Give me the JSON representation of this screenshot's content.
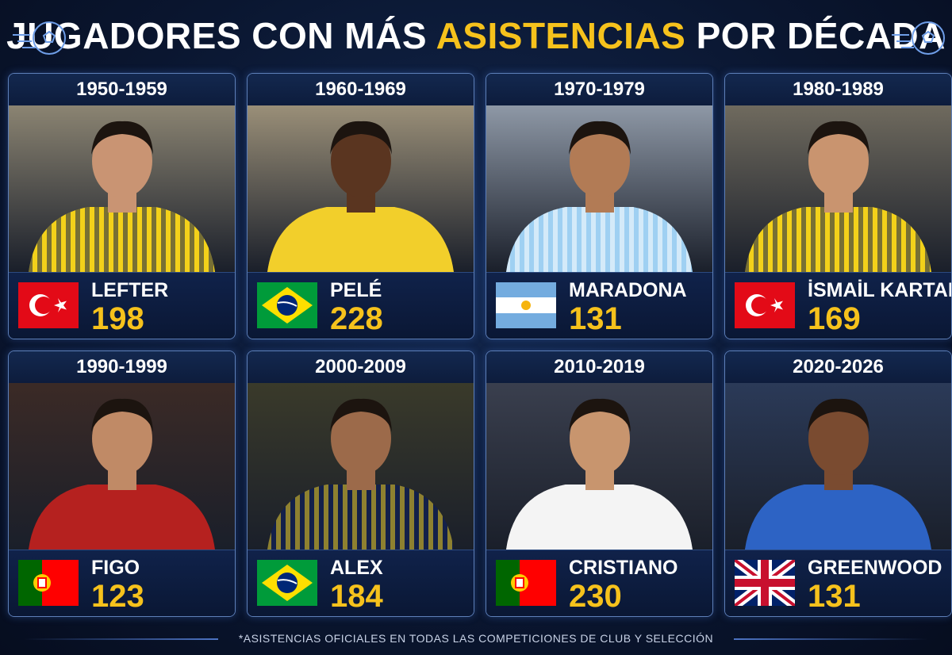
{
  "title": {
    "parts": [
      "JUGADORES CON MÁS",
      "ASISTENCIAS",
      "POR DÉCADA"
    ]
  },
  "cards": [
    {
      "decade": "1950-1959",
      "name": "LEFTER",
      "assists": "198"
    },
    {
      "decade": "1960-1969",
      "name": "PELÉ",
      "assists": "228"
    },
    {
      "decade": "1970-1979",
      "name": "MARADONA",
      "assists": "131"
    },
    {
      "decade": "1980-1989",
      "name": "İSMAİL KARTAL",
      "assists": "169"
    },
    {
      "decade": "1990-1999",
      "name": "FIGO",
      "assists": "123"
    },
    {
      "decade": "2000-2009",
      "name": "ALEX",
      "assists": "184"
    },
    {
      "decade": "2010-2019",
      "name": "CRISTIANO",
      "assists": "230"
    },
    {
      "decade": "2020-2026",
      "name": "GREENWOOD",
      "assists": "131"
    }
  ],
  "footnote": "*ASISTENCIAS OFICIALES EN TODAS LAS COMPETICIONES DE CLUB Y SELECCIÓN"
}
